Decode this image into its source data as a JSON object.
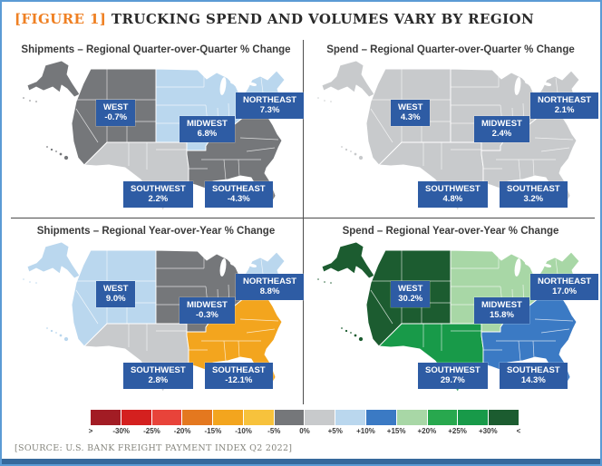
{
  "figure": {
    "tag": "[FIGURE 1]",
    "title": " TRUCKING SPEND AND VOLUMES VARY BY REGION",
    "source": "[SOURCE: U.S. BANK FREIGHT PAYMENT INDEX Q2 2022]"
  },
  "accent_colors": {
    "frame_border": "#5b9bd5",
    "bottom_bar": "#36699c",
    "figure_tag_orange": "#ef8023",
    "label_box_blue": "#2e5ca4"
  },
  "panels": [
    {
      "id": "shipments-qoq",
      "title": "Shipments – Regional Quarter-over-Quarter % Change",
      "regions": [
        {
          "key": "west",
          "name": "WEST",
          "value": "-0.7%",
          "color": "#75777a"
        },
        {
          "key": "midwest",
          "name": "MIDWEST",
          "value": "6.8%",
          "color": "#bad7ee"
        },
        {
          "key": "northeast",
          "name": "NORTHEAST",
          "value": "7.3%",
          "color": "#bad7ee"
        },
        {
          "key": "southwest",
          "name": "SOUTHWEST",
          "value": "2.2%",
          "color": "#c8cacc"
        },
        {
          "key": "southeast",
          "name": "SOUTHEAST",
          "value": "-4.3%",
          "color": "#75777a"
        }
      ]
    },
    {
      "id": "spend-qoq",
      "title": "Spend – Regional Quarter-over-Quarter % Change",
      "regions": [
        {
          "key": "west",
          "name": "WEST",
          "value": "4.3%",
          "color": "#c8cacc"
        },
        {
          "key": "midwest",
          "name": "MIDWEST",
          "value": "2.4%",
          "color": "#c8cacc"
        },
        {
          "key": "northeast",
          "name": "NORTHEAST",
          "value": "2.1%",
          "color": "#c8cacc"
        },
        {
          "key": "southwest",
          "name": "SOUTHWEST",
          "value": "4.8%",
          "color": "#c8cacc"
        },
        {
          "key": "southeast",
          "name": "SOUTHEAST",
          "value": "3.2%",
          "color": "#c8cacc"
        }
      ]
    },
    {
      "id": "shipments-yoy",
      "title": "Shipments – Regional Year-over-Year % Change",
      "regions": [
        {
          "key": "west",
          "name": "WEST",
          "value": "9.0%",
          "color": "#bad7ee"
        },
        {
          "key": "midwest",
          "name": "MIDWEST",
          "value": "-0.3%",
          "color": "#75777a"
        },
        {
          "key": "northeast",
          "name": "NORTHEAST",
          "value": "8.8%",
          "color": "#bad7ee"
        },
        {
          "key": "southwest",
          "name": "SOUTHWEST",
          "value": "2.8%",
          "color": "#c8cacc"
        },
        {
          "key": "southeast",
          "name": "SOUTHEAST",
          "value": "-12.1%",
          "color": "#f3a51e"
        }
      ]
    },
    {
      "id": "spend-yoy",
      "title": "Spend – Regional Year-over-Year % Change",
      "regions": [
        {
          "key": "west",
          "name": "WEST",
          "value": "30.2%",
          "color": "#1c5c30"
        },
        {
          "key": "midwest",
          "name": "MIDWEST",
          "value": "15.8%",
          "color": "#a8d7a6"
        },
        {
          "key": "northeast",
          "name": "NORTHEAST",
          "value": "17.0%",
          "color": "#a8d7a6"
        },
        {
          "key": "southwest",
          "name": "SOUTHWEST",
          "value": "29.7%",
          "color": "#189a49"
        },
        {
          "key": "southeast",
          "name": "SOUTHEAST",
          "value": "14.3%",
          "color": "#3b7ac4"
        }
      ]
    }
  ],
  "legend": {
    "labels": [
      ">",
      "-30%",
      "-25%",
      "-20%",
      "-15%",
      "-10%",
      "-5%",
      "0%",
      "+5%",
      "+10%",
      "+15%",
      "+20%",
      "+25%",
      "+30%",
      "<"
    ],
    "colors": [
      "#a21c24",
      "#d4201f",
      "#e8433a",
      "#e4781f",
      "#f3a51e",
      "#f7c23c",
      "#75777a",
      "#c8cacc",
      "#bad7ee",
      "#3b7ac4",
      "#a8d7a6",
      "#28a84e",
      "#189a49",
      "#1c5c30"
    ]
  },
  "chart_data": {
    "type": "heatmap",
    "subtype": "choropleth-map-grid",
    "title": "TRUCKING SPEND AND VOLUMES VARY BY REGION",
    "regions": [
      "West",
      "Midwest",
      "Northeast",
      "Southwest",
      "Southeast"
    ],
    "series": [
      {
        "name": "Shipments – Regional Quarter-over-Quarter % Change",
        "values": [
          -0.7,
          6.8,
          7.3,
          2.2,
          -4.3
        ]
      },
      {
        "name": "Spend – Regional Quarter-over-Quarter % Change",
        "values": [
          4.3,
          2.4,
          2.1,
          4.8,
          3.2
        ]
      },
      {
        "name": "Shipments – Regional Year-over-Year % Change",
        "values": [
          9.0,
          -0.3,
          8.8,
          2.8,
          -12.1
        ]
      },
      {
        "name": "Spend – Regional Year-over-Year % Change",
        "values": [
          30.2,
          15.8,
          17.0,
          29.7,
          14.3
        ]
      }
    ],
    "color_scale_ticks_percent": [
      -30,
      -25,
      -20,
      -15,
      -10,
      -5,
      0,
      5,
      10,
      15,
      20,
      25,
      30
    ],
    "legend_position": "bottom",
    "source": "U.S. BANK FREIGHT PAYMENT INDEX Q2 2022"
  }
}
